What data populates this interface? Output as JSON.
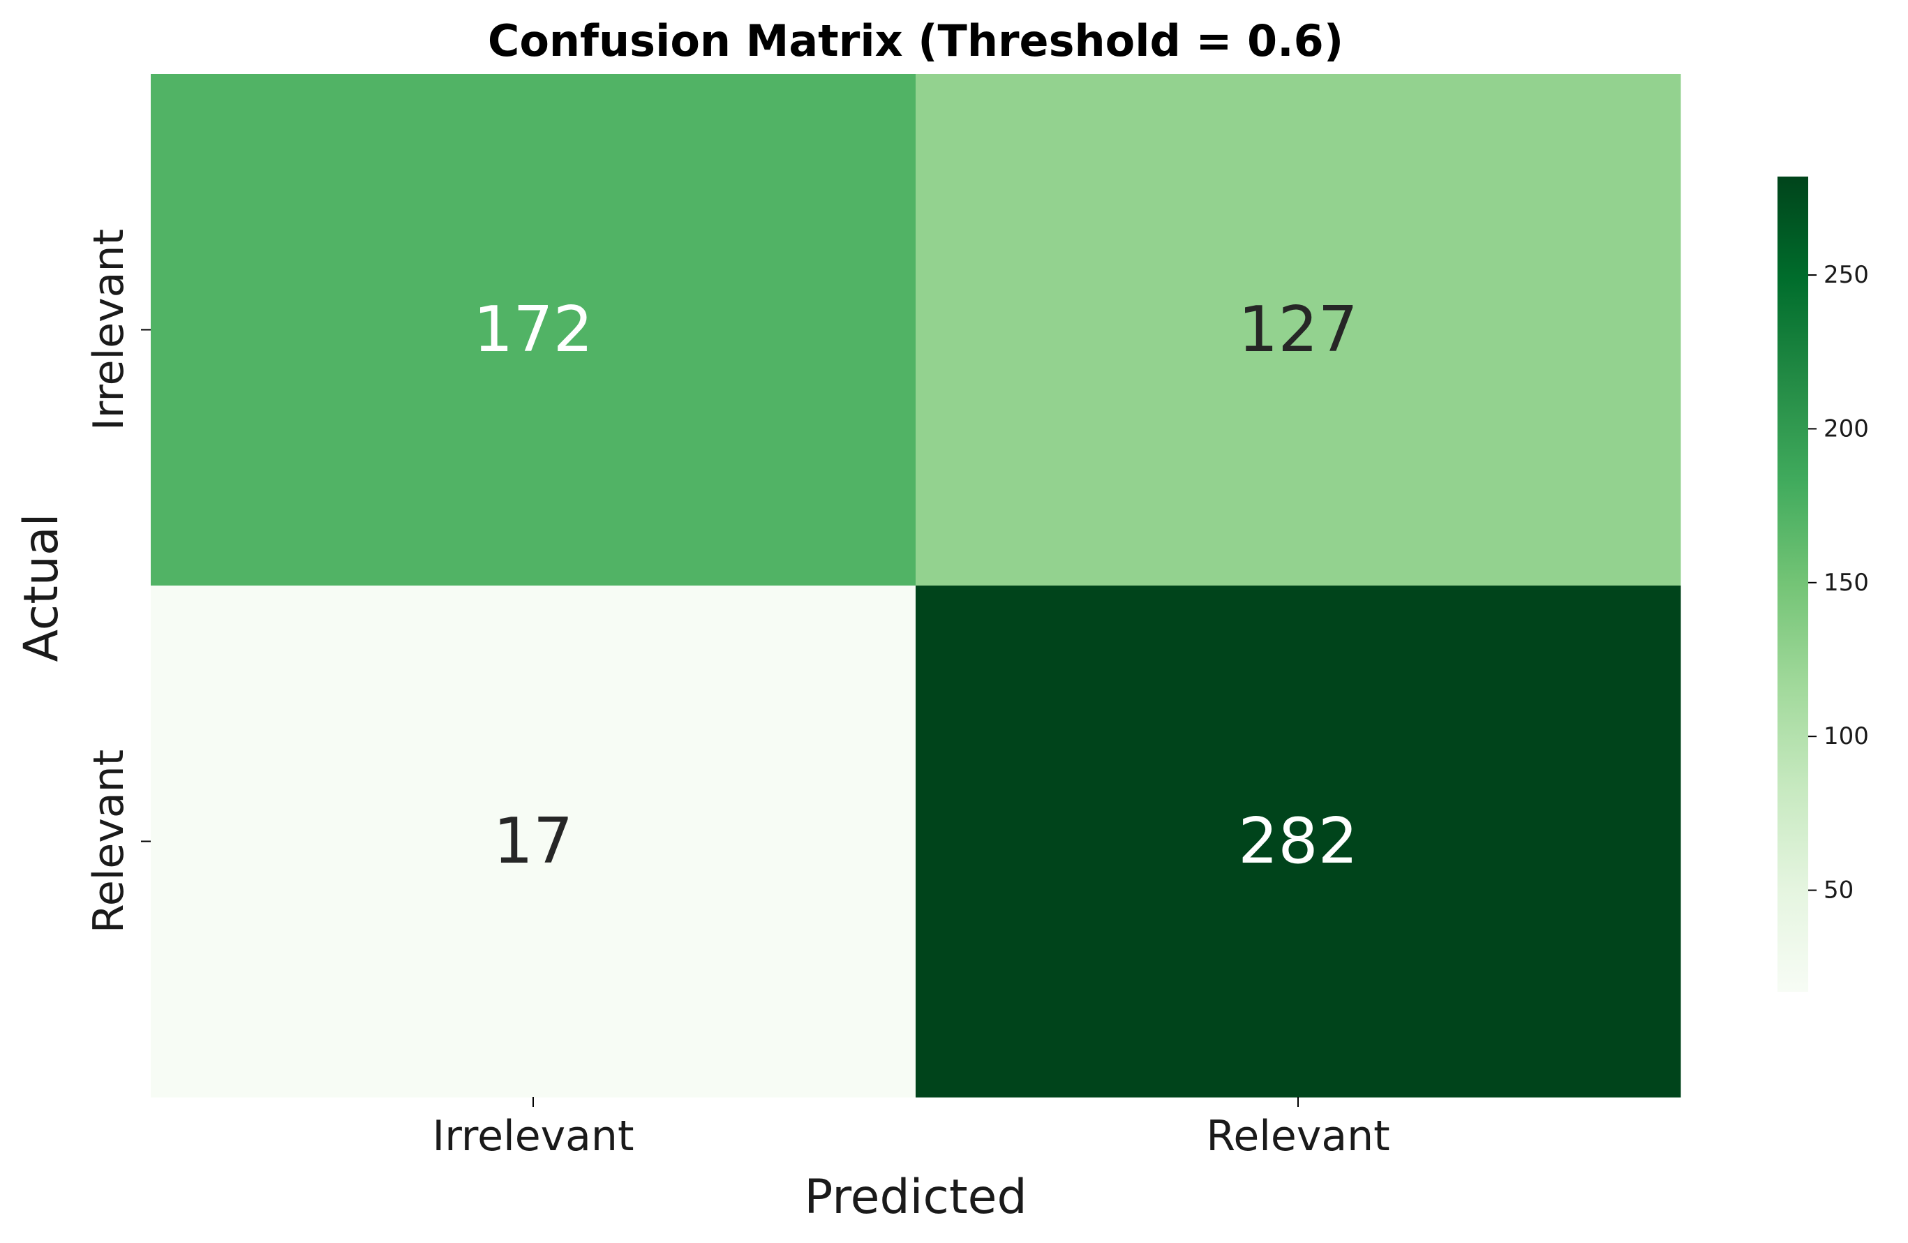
{
  "chart_data": {
    "type": "heatmap",
    "title": "Confusion Matrix (Threshold = 0.6)",
    "xlabel": "Predicted",
    "ylabel": "Actual",
    "x_categories": [
      "Irrelevant",
      "Relevant"
    ],
    "y_categories": [
      "Irrelevant",
      "Relevant"
    ],
    "values": [
      [
        172,
        127
      ],
      [
        17,
        282
      ]
    ],
    "colormap": "Greens",
    "color_range": [
      17,
      282
    ],
    "colorbar": {
      "position": "right",
      "ticks": [
        50,
        100,
        150,
        200,
        250
      ]
    },
    "grid": false
  }
}
